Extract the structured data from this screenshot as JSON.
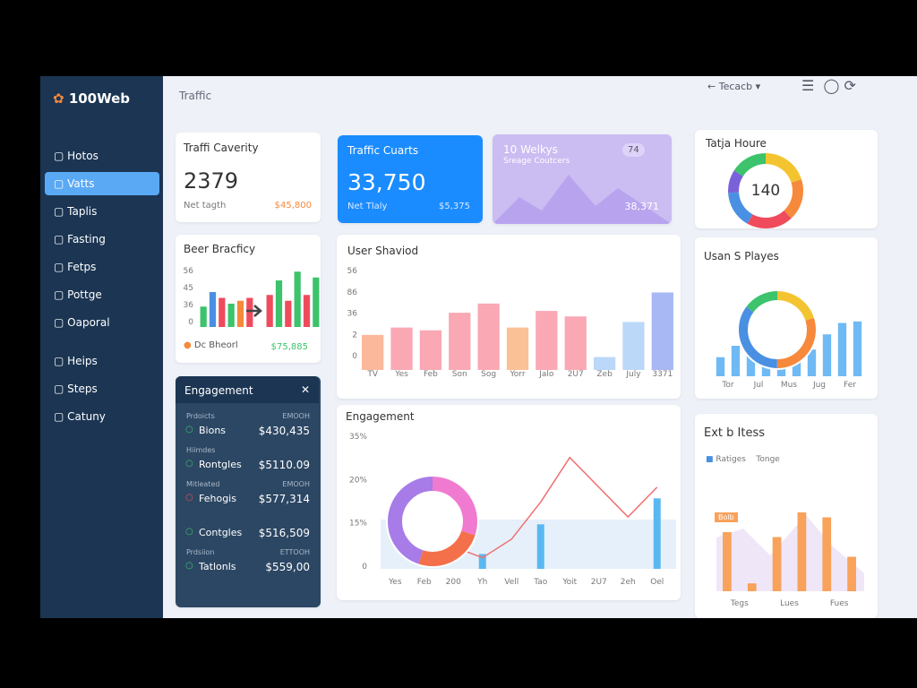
{
  "sidebar": {
    "brand": "100Web",
    "active_item": 1,
    "items": [
      "Hotos",
      "Vatts",
      "Taplis",
      "Fasting",
      "Fetps",
      "Pottge",
      "Oaporal",
      "Heips",
      "Steps",
      "Catuny"
    ]
  },
  "header": {
    "title": "Traffic",
    "search": "Tecacb"
  },
  "stats": [
    {
      "title": "Traffi Caverity",
      "value": "2379",
      "label": "Net tagth",
      "amount": "$45,800"
    },
    {
      "title": "Traffic Cuarts",
      "value": "33,750",
      "label": "Net Tlaly",
      "amount": "$5,375"
    },
    {
      "title": "10 Welkys",
      "label": "Sreage Coutcers",
      "badge": "74",
      "amount": "38,371"
    }
  ],
  "hours_chart": {
    "title": "Tatja Houre",
    "center": "140",
    "segments": [
      {
        "value": 20,
        "color": "#f4c430"
      },
      {
        "value": 18,
        "color": "#f6893b"
      },
      {
        "value": 20,
        "color": "#ef4b5c"
      },
      {
        "value": 16,
        "color": "#4a90e2"
      },
      {
        "value": 10,
        "color": "#7b61d9"
      },
      {
        "value": 16,
        "color": "#3cc36b"
      }
    ]
  },
  "beer_chart": {
    "title": "Beer Bracficy",
    "axis_labels": [
      "56",
      "45",
      "36",
      "0"
    ],
    "legend": "Dc Bheorl",
    "amount": "$75,885",
    "ylim": [
      0,
      100
    ],
    "values": [
      35,
      60,
      50,
      40,
      45,
      50,
      55,
      80,
      45,
      95,
      55,
      85
    ],
    "colors": [
      "#3cc36b",
      "#4a90e2",
      "#ef4b5c",
      "#3cc36b",
      "#f6893b",
      "#ef4b5c",
      "#ef4b5c",
      "#3cc36b",
      "#ef4b5c",
      "#3cc36b",
      "#ef4b5c",
      "#3cc36b"
    ]
  },
  "engagement_panel": {
    "title": "Engagement",
    "rows": [
      {
        "group": "Prdoicts",
        "meta": "EMOOH",
        "label": "Bions",
        "amount": "$430,435",
        "color": "#3cc36b"
      },
      {
        "group": "Hiimdes",
        "label": "Rontgles",
        "amount": "$5110.09",
        "color": "#3cc36b"
      },
      {
        "group": "Mitleated",
        "meta": "EMOOH",
        "label": "Fehogis",
        "amount": "$577,314",
        "color": "#ef4b5c"
      },
      {
        "label": "Contgles",
        "amount": "$516,509",
        "color": "#3cc36b"
      },
      {
        "group": "Prdsiion",
        "meta": "ETTOOH",
        "label": "Tatlonls",
        "amount": "$559,00",
        "color": "#3cc36b"
      }
    ]
  },
  "user_chart": {
    "title": "User Shaviod",
    "axis_labels": [
      "56",
      "86",
      "36",
      "2",
      "0"
    ],
    "ylim": [
      0,
      100
    ],
    "categories": [
      "TV",
      "Yes",
      "Feb",
      "Son",
      "Sog",
      "Yorr",
      "Jalo",
      "2U7",
      "Zeb",
      "July",
      "3371"
    ],
    "values": [
      38,
      46,
      43,
      62,
      72,
      46,
      64,
      58,
      14,
      52,
      84
    ],
    "colors": [
      "#fbb89a",
      "#f9a8b4",
      "#f9a8b4",
      "#f9a8b4",
      "#f9a8b4",
      "#fbc196",
      "#f9a8b4",
      "#f9a8b4",
      "#bcd8f8",
      "#bcd8f8",
      "#a8b8f5"
    ]
  },
  "players_chart": {
    "title": "Usan S Playes",
    "ylim": [
      0,
      100
    ],
    "categories": [
      "Tor",
      "Jul",
      "Mus",
      "Jug",
      "Fer"
    ],
    "values": [
      25,
      40,
      30,
      35,
      20,
      30,
      35,
      55,
      70,
      72
    ],
    "color": "#6fbaf5",
    "segments": [
      {
        "value": 20,
        "color": "#f4c430"
      },
      {
        "value": 30,
        "color": "#f6893b"
      },
      {
        "value": 35,
        "color": "#4a90e2"
      },
      {
        "value": 15,
        "color": "#3cc36b"
      }
    ]
  },
  "engagement_chart": {
    "title": "Engagement",
    "axis_labels": [
      "35%",
      "20%",
      "15%",
      "0"
    ],
    "ylim": [
      0,
      35
    ],
    "categories": [
      "Yes",
      "Feb",
      "200",
      "Yh",
      "Vell",
      "Tao",
      "Yoit",
      "2U7",
      "2eh",
      "Oel"
    ],
    "line_values": [
      12,
      10,
      6,
      3,
      8,
      18,
      30,
      22,
      14,
      22
    ],
    "bar_values": [
      0,
      0,
      0,
      4,
      0,
      12,
      0,
      0,
      0,
      19
    ],
    "segments": [
      {
        "value": 30,
        "color": "#f07ad0"
      },
      {
        "value": 25,
        "color": "#f4704a"
      },
      {
        "value": 45,
        "color": "#a77be8"
      }
    ]
  },
  "items_chart": {
    "title": "Ext b Itess",
    "legend": [
      "Ratiges",
      "Tonge"
    ],
    "tag": "Bolb",
    "ylim": [
      0,
      100
    ],
    "categories": [
      "Tegs",
      "Lues",
      "Fues"
    ],
    "values": [
      60,
      8,
      55,
      80,
      75,
      35
    ],
    "color": "#f8a25c"
  }
}
